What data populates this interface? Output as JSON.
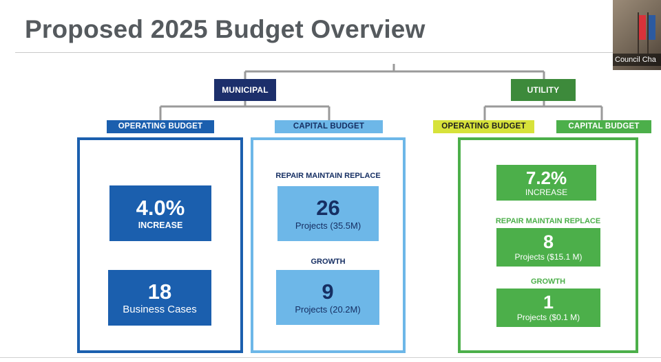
{
  "title": "Proposed 2025 Budget Overview",
  "webcam": {
    "label": "Council Cha"
  },
  "colors": {
    "municipal_dark": "#1c2f6b",
    "operating_blue": "#1b5fae",
    "capital_blue_light": "#6db7e8",
    "capital_text_dark": "#162f63",
    "utility_green_dark": "#3d8a3b",
    "utility_green": "#4caf4a",
    "utility_yellow": "#d7e23a",
    "connector_gray": "#9a9a9a"
  },
  "municipal": {
    "label": "MUNICIPAL",
    "operating": {
      "label": "OPERATING BUDGET",
      "increase_value": "4.0%",
      "increase_label": "INCREASE",
      "business_cases_value": "18",
      "business_cases_label": "Business Cases"
    },
    "capital": {
      "label": "CAPITAL BUDGET",
      "rmr_label": "REPAIR MAINTAIN REPLACE",
      "rmr_value": "26",
      "rmr_projects": "Projects (35.5M)",
      "growth_label": "GROWTH",
      "growth_value": "9",
      "growth_projects": "Projects (20.2M)"
    }
  },
  "utility": {
    "label": "UTILITY",
    "operating": {
      "label": "OPERATING BUDGET"
    },
    "capital": {
      "label": "CAPITAL BUDGET"
    },
    "increase_value": "7.2%",
    "increase_label": "INCREASE",
    "rmr_label": "REPAIR MAINTAIN REPLACE",
    "rmr_value": "8",
    "rmr_projects": "Projects ($15.1 M)",
    "growth_label": "GROWTH",
    "growth_value": "1",
    "growth_projects": "Projects ($0.1 M)"
  }
}
